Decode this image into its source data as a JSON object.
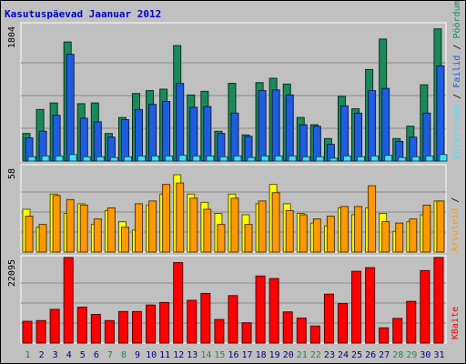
{
  "chart_data": {
    "type": "bar",
    "title": "Kasutuspäevad Jaanuar 2012",
    "categories": [
      "1",
      "2",
      "3",
      "4",
      "5",
      "6",
      "7",
      "8",
      "9",
      "10",
      "11",
      "12",
      "13",
      "14",
      "15",
      "16",
      "17",
      "18",
      "19",
      "20",
      "21",
      "22",
      "23",
      "24",
      "25",
      "26",
      "27",
      "28",
      "29",
      "30",
      "31"
    ],
    "weekend_categories": [
      "1",
      "7",
      "8",
      "14",
      "15",
      "21",
      "22",
      "28",
      "29"
    ],
    "panels": [
      {
        "id": "visits",
        "tick_label": "1804",
        "ymax": 1804,
        "ylabel": "Külastused / Failid / Pöördumised",
        "series": [
          {
            "name": "Pöördumised",
            "color": "#1a8a5a",
            "values": [
              380,
              710,
              800,
              1640,
              790,
              800,
              380,
              600,
              930,
              970,
              990,
              1590,
              910,
              960,
              410,
              1070,
              360,
              1080,
              1140,
              1060,
              600,
              500,
              310,
              890,
              720,
              1260,
              1680,
              310,
              480,
              1050,
              1820
            ]
          },
          {
            "name": "Failid",
            "color": "#1f5de0",
            "values": [
              320,
              410,
              630,
              1470,
              590,
              540,
              330,
              570,
              710,
              780,
              820,
              1070,
              740,
              750,
              380,
              660,
              340,
              970,
              980,
              910,
              500,
              480,
              230,
              760,
              660,
              970,
              1000,
              270,
              330,
              660,
              1310
            ]
          },
          {
            "name": "Külastused",
            "color": "#40e0ff",
            "values": [
              60,
              70,
              70,
              90,
              60,
              60,
              50,
              60,
              70,
              70,
              70,
              80,
              70,
              70,
              60,
              70,
              50,
              70,
              70,
              70,
              60,
              60,
              40,
              70,
              60,
              70,
              80,
              50,
              60,
              70,
              90
            ]
          }
        ]
      },
      {
        "id": "hosts",
        "tick_label": "58",
        "ymax": 58,
        "ylabel": "Arvuteid",
        "series": [
          {
            "name": "Külastajad",
            "color": "#ffff00",
            "values": [
              31,
              18,
              42,
              28,
              35,
              20,
              30,
              22,
              16,
              34,
              42,
              56,
              42,
              36,
              28,
              42,
              27,
              35,
              49,
              35,
              28,
              21,
              19,
              32,
              27,
              32,
              28,
              15,
              22,
              27,
              37
            ]
          },
          {
            "name": "Arvuteid",
            "color": "#ff9900",
            "values": [
              26,
              20,
              41,
              38,
              34,
              24,
              32,
              18,
              35,
              37,
              49,
              50,
              39,
              31,
              20,
              39,
              20,
              37,
              43,
              30,
              27,
              24,
              26,
              33,
              33,
              48,
              22,
              21,
              24,
              34,
              37
            ]
          }
        ]
      },
      {
        "id": "bytes",
        "tick_label": "22095",
        "ymax": 22095,
        "ylabel": "KBaite",
        "series": [
          {
            "name": "KBaite",
            "color": "#ff0000",
            "values": [
              6000,
              6200,
              9300,
              28100,
              9900,
              7900,
              6200,
              8700,
              8700,
              10500,
              11200,
              22200,
              11800,
              13700,
              6500,
              13100,
              5600,
              18500,
              17800,
              8600,
              6900,
              4700,
              13500,
              10900,
              19800,
              20800,
              4200,
              6800,
              11500,
              20000,
              28400
            ]
          }
        ]
      }
    ],
    "legend_side": "right"
  }
}
